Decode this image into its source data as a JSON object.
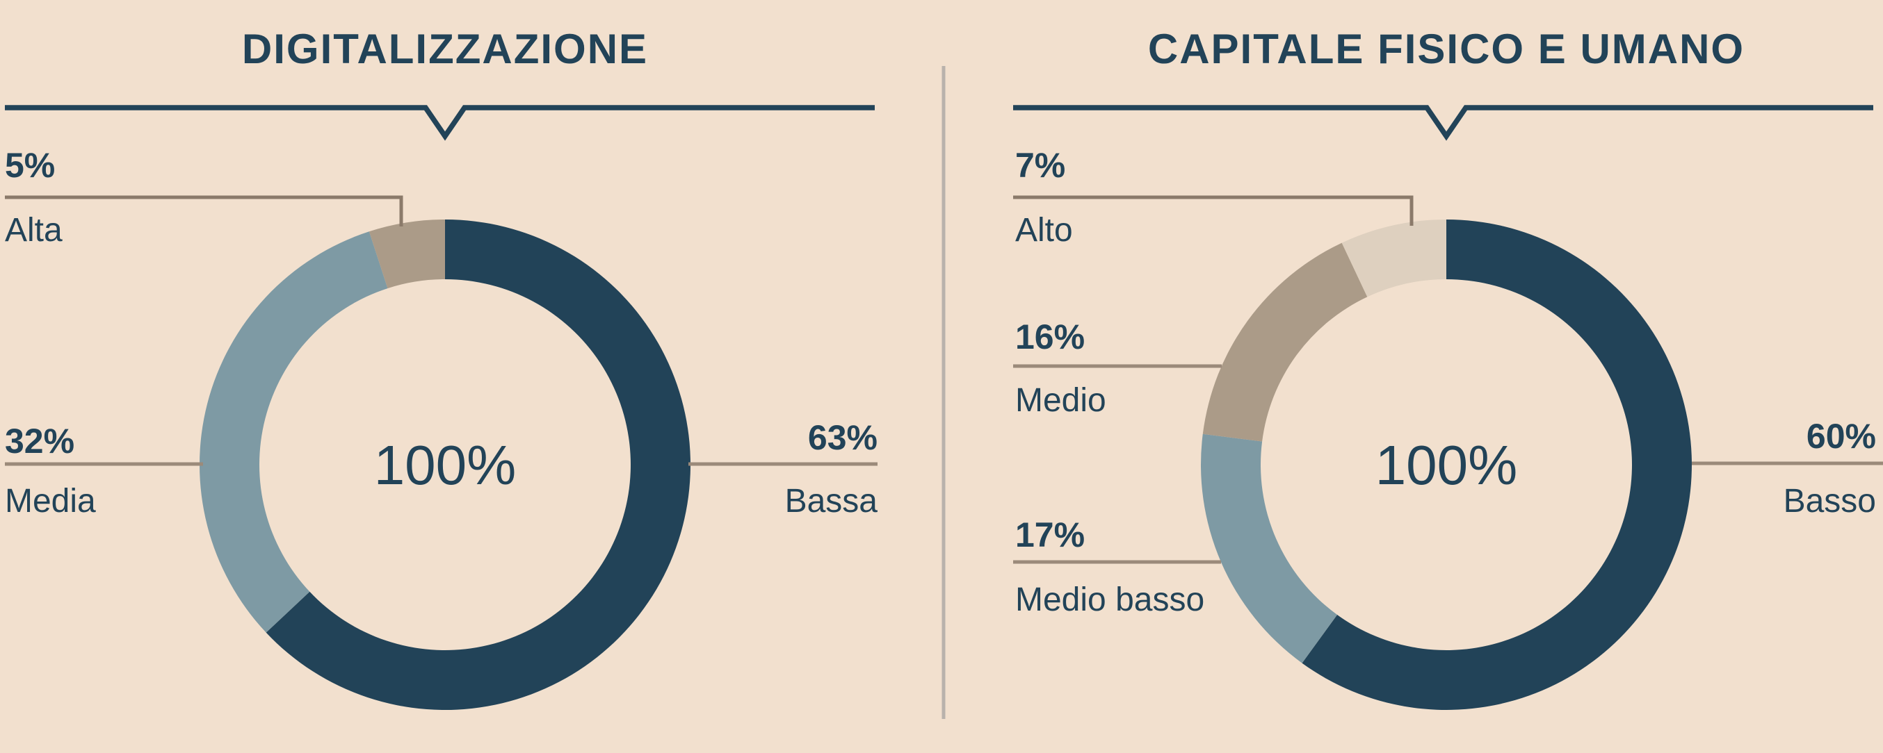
{
  "colors": {
    "background": "#f2e0ce",
    "navy": "#224358",
    "blue_gray": "#7e9aa4",
    "taupe": "#ab9b88",
    "cream": "#ded0bf",
    "leader_line": "#9b8a7a",
    "connector_line": "#8b7a6a",
    "divider": "#b9b2ac"
  },
  "chart_data": [
    {
      "type": "pie",
      "subtype": "donut",
      "title": "DIGITALIZZAZIONE",
      "center_label": "100%",
      "direction": "clockwise",
      "start_angle_deg": 0,
      "legend_position": "callout-labels",
      "segments": [
        {
          "label": "Bassa",
          "pct_label": "63%",
          "value": 63,
          "color_key": "navy",
          "label_side": "right"
        },
        {
          "label": "Media",
          "pct_label": "32%",
          "value": 32,
          "color_key": "blue_gray",
          "label_side": "left"
        },
        {
          "label": "Alta",
          "pct_label": "5%",
          "value": 5,
          "color_key": "taupe",
          "label_side": "top-left"
        }
      ]
    },
    {
      "type": "pie",
      "subtype": "donut",
      "title": "CAPITALE FISICO E UMANO",
      "center_label": "100%",
      "direction": "clockwise",
      "start_angle_deg": 0,
      "legend_position": "callout-labels",
      "segments": [
        {
          "label": "Basso",
          "pct_label": "60%",
          "value": 60,
          "color_key": "navy",
          "label_side": "right"
        },
        {
          "label": "Medio basso",
          "pct_label": "17%",
          "value": 17,
          "color_key": "blue_gray",
          "label_side": "left"
        },
        {
          "label": "Medio",
          "pct_label": "16%",
          "value": 16,
          "color_key": "taupe",
          "label_side": "left"
        },
        {
          "label": "Alto",
          "pct_label": "7%",
          "value": 7,
          "color_key": "cream",
          "label_side": "top-left"
        }
      ]
    }
  ]
}
